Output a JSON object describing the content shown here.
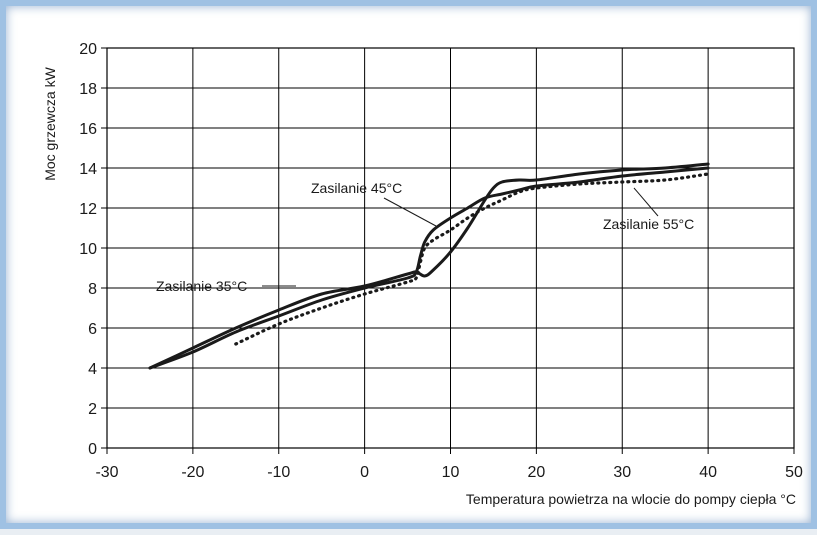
{
  "chart_data": {
    "type": "line",
    "title": "",
    "xlabel": "Temperatura powietrza na wlocie do pompy ciepła °C",
    "ylabel": "Moc grzewcza kW",
    "xlim": [
      -30,
      50
    ],
    "ylim": [
      0,
      20
    ],
    "x_ticks": [
      "-30",
      "-20",
      "-10",
      "0",
      "10",
      "20",
      "30",
      "40",
      "50"
    ],
    "y_ticks": [
      "0",
      "2",
      "4",
      "6",
      "8",
      "10",
      "12",
      "14",
      "16",
      "18",
      "20"
    ],
    "grid": true,
    "series": [
      {
        "name": "Zasilanie 35°C",
        "style": "solid",
        "x": [
          -25,
          -20,
          -15,
          -10,
          -5,
          0,
          5,
          6,
          7,
          8,
          10,
          12,
          14,
          15,
          16,
          18,
          20,
          25,
          30,
          35,
          40
        ],
        "y": [
          4.0,
          5.0,
          6.0,
          6.9,
          7.7,
          8.1,
          8.7,
          8.8,
          8.6,
          8.9,
          9.8,
          11.0,
          12.4,
          13.0,
          13.3,
          13.4,
          13.4,
          13.7,
          13.9,
          14.0,
          14.2
        ]
      },
      {
        "name": "Zasilanie 45°C",
        "style": "solid",
        "x": [
          -25,
          -20,
          -15,
          -10,
          -5,
          0,
          5,
          6,
          6.5,
          7,
          8,
          10,
          12,
          14,
          16,
          18,
          20,
          25,
          30,
          35,
          40
        ],
        "y": [
          4.0,
          4.8,
          5.8,
          6.6,
          7.4,
          8.0,
          8.5,
          8.8,
          9.6,
          10.3,
          10.9,
          11.5,
          12.0,
          12.5,
          12.7,
          12.9,
          13.1,
          13.3,
          13.6,
          13.8,
          14.0
        ]
      },
      {
        "name": "Zasilanie 55°C",
        "style": "dotted",
        "x": [
          -15,
          -10,
          -5,
          0,
          5,
          6,
          6.5,
          7,
          8,
          10,
          12,
          14,
          16,
          18,
          20,
          25,
          30,
          35,
          40
        ],
        "y": [
          5.2,
          6.2,
          7.0,
          7.7,
          8.3,
          8.5,
          9.3,
          10.0,
          10.4,
          10.9,
          11.5,
          12.0,
          12.4,
          12.8,
          13.0,
          13.2,
          13.3,
          13.4,
          13.7
        ]
      }
    ],
    "annotations": [
      {
        "text": "Zasilanie 45°C",
        "series": 1
      },
      {
        "text": "Zasilanie 35°C",
        "series": 0
      },
      {
        "text": "Zasilanie 55°C",
        "series": 2
      }
    ]
  },
  "colors": {
    "frame": "#9fc1e3",
    "line": "#1a1a1a",
    "grid": "#000000"
  }
}
